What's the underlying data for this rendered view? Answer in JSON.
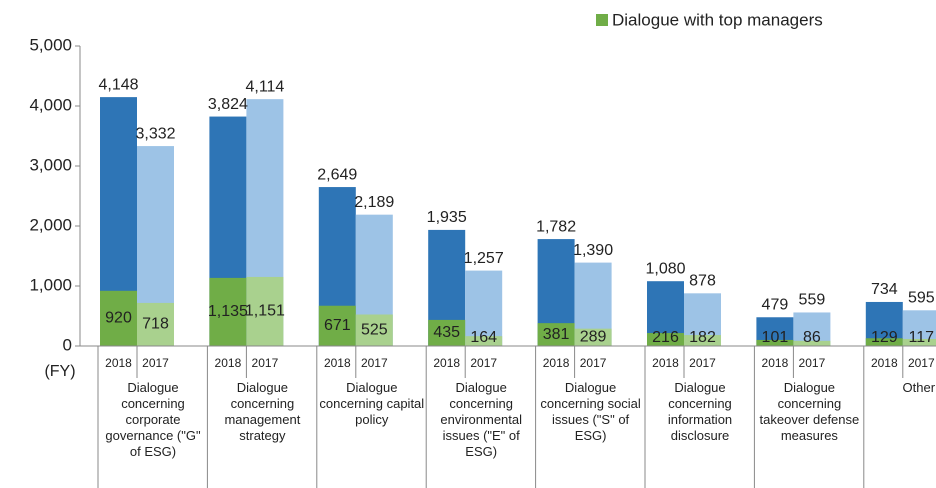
{
  "chart_data": {
    "type": "bar",
    "x_label": "(FY)",
    "categories": [
      "Dialogue concerning corporate governance (\"G\" of ESG)",
      "Dialogue concerning management strategy",
      "Dialogue concerning capital policy",
      "Dialogue concerning environmental issues (\"E\" of ESG)",
      "Dialogue concerning social issues (\"S\" of ESG)",
      "Dialogue concerning information disclosure",
      "Dialogue concerning takeover defense measures",
      "Other"
    ],
    "years": [
      "2018",
      "2017"
    ],
    "series": [
      {
        "color": "#2e75b6",
        "values": [
          4148,
          3824,
          2649,
          1935,
          1782,
          1080,
          479,
          734
        ],
        "value_labels": [
          "4,148",
          "3,824",
          "2,649",
          "1,935",
          "1,782",
          "1,080",
          "479",
          "734"
        ]
      },
      {
        "color": "#9dc3e6",
        "values": [
          3332,
          4114,
          2189,
          1257,
          1390,
          878,
          559,
          595
        ],
        "value_labels": [
          "3,332",
          "4,114",
          "2,189",
          "1,257",
          "1,390",
          "878",
          "559",
          "595"
        ]
      },
      {
        "name": "Dialogue with top managers",
        "color": "#70ad47",
        "values": [
          920,
          1135,
          671,
          435,
          381,
          216,
          101,
          129
        ],
        "value_labels": [
          "920",
          "1,135",
          "671",
          "435",
          "381",
          "216",
          "101",
          "129"
        ]
      },
      {
        "color": "#a9d18e",
        "values": [
          718,
          1151,
          525,
          164,
          289,
          182,
          86,
          117
        ],
        "value_labels": [
          "718",
          "1,151",
          "525",
          "164",
          "289",
          "182",
          "86",
          "117"
        ]
      }
    ],
    "ylim": [
      0,
      5000
    ],
    "yticks": [
      0,
      {
        "value": 1000,
        "label": "1,000"
      },
      {
        "value": 2000,
        "label": "2,000"
      },
      {
        "value": 3000,
        "label": "3,000"
      },
      {
        "value": 4000,
        "label": "4,000"
      },
      {
        "value": 5000,
        "label": "5,000"
      }
    ]
  }
}
